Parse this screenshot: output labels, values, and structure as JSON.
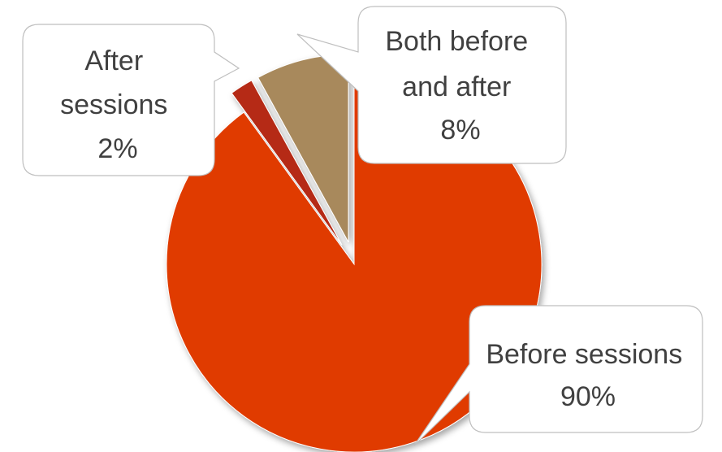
{
  "chart_data": {
    "type": "pie",
    "title": "",
    "start_angle_deg": 0,
    "direction": "clockwise",
    "slices": [
      {
        "label_lines": [
          "Before sessions"
        ],
        "value": 90,
        "value_text": "90%",
        "color": "#e03a00",
        "exploded": false
      },
      {
        "label_lines": [
          "After",
          "sessions"
        ],
        "value": 2,
        "value_text": "2%",
        "color": "#b52a12",
        "exploded": true
      },
      {
        "label_lines": [
          "Both before",
          "and after"
        ],
        "value": 8,
        "value_text": "8%",
        "color": "#a8895c",
        "exploded": true
      }
    ],
    "legend": "none",
    "data_labels": "callouts"
  }
}
